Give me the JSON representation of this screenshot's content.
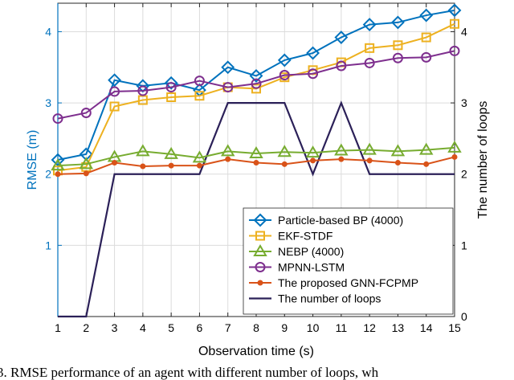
{
  "chart_data": {
    "type": "line",
    "x": [
      1,
      2,
      3,
      4,
      5,
      6,
      7,
      8,
      9,
      10,
      11,
      12,
      13,
      14,
      15
    ],
    "xlim": [
      1,
      15
    ],
    "ylim_left": [
      0,
      4.4
    ],
    "ylim_right": [
      0,
      4.4
    ],
    "xlabel": "Observation time (s)",
    "ylabel_left": "RMSE (m)",
    "ylabel_right": "The number of loops",
    "xticks": [
      "1",
      "2",
      "3",
      "4",
      "5",
      "6",
      "7",
      "8",
      "9",
      "10",
      "11",
      "12",
      "13",
      "14",
      "15"
    ],
    "yticks_left": [
      "1",
      "2",
      "3",
      "4"
    ],
    "yticks_right": [
      "0",
      "1",
      "2",
      "3",
      "4"
    ],
    "grid": true,
    "legend_position": "bottom-right",
    "series": [
      {
        "name": "Particle-based BP (4000)",
        "color": "#0072BD",
        "marker": "diamond",
        "axis": "left",
        "values": [
          2.2,
          2.28,
          3.32,
          3.24,
          3.28,
          3.18,
          3.5,
          3.38,
          3.6,
          3.7,
          3.92,
          4.1,
          4.13,
          4.23,
          4.3
        ]
      },
      {
        "name": "EKF-STDF",
        "color": "#EDB120",
        "marker": "square",
        "axis": "left",
        "values": [
          2.05,
          2.1,
          2.95,
          3.04,
          3.08,
          3.1,
          3.22,
          3.2,
          3.36,
          3.46,
          3.57,
          3.77,
          3.81,
          3.92,
          4.11
        ]
      },
      {
        "name": "NEBP (4000)",
        "color": "#77AC30",
        "marker": "triangle",
        "axis": "left",
        "values": [
          2.12,
          2.14,
          2.24,
          2.32,
          2.28,
          2.23,
          2.32,
          2.29,
          2.31,
          2.3,
          2.33,
          2.34,
          2.32,
          2.34,
          2.37
        ]
      },
      {
        "name": "MPNN-LSTM",
        "color": "#7E2F8E",
        "marker": "circle",
        "axis": "left",
        "values": [
          2.78,
          2.86,
          3.16,
          3.17,
          3.22,
          3.31,
          3.22,
          3.27,
          3.39,
          3.41,
          3.52,
          3.56,
          3.63,
          3.64,
          3.73
        ]
      },
      {
        "name": "The proposed GNN-FCPMP",
        "color": "#D95319",
        "marker": "dot",
        "axis": "left",
        "values": [
          2.0,
          2.01,
          2.16,
          2.11,
          2.12,
          2.12,
          2.21,
          2.16,
          2.14,
          2.19,
          2.21,
          2.19,
          2.16,
          2.14,
          2.24
        ]
      },
      {
        "name": "The number of loops",
        "color": "#2B2058",
        "marker": "none",
        "axis": "right",
        "values": [
          0,
          0,
          2,
          2,
          2,
          2,
          3,
          3,
          3,
          2,
          3,
          2,
          2,
          2,
          2
        ]
      }
    ]
  },
  "caption": "3.  RMSE performance of an agent with different number of loops, wh"
}
